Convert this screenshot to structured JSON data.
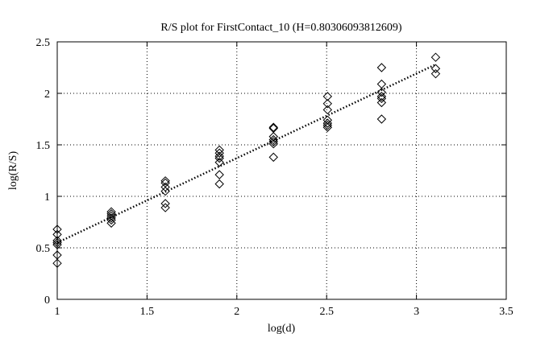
{
  "chart_data": {
    "type": "scatter",
    "title": "R/S plot for FirstContact_10 (H=0.80306093812609)",
    "xlabel": "log(d)",
    "ylabel": "log(R/S)",
    "xlim": [
      1,
      3.5
    ],
    "ylim": [
      0,
      2.5
    ],
    "x_ticks": [
      1,
      1.5,
      2,
      2.5,
      3,
      3.5
    ],
    "y_ticks": [
      0,
      0.5,
      1,
      1.5,
      2,
      2.5
    ],
    "x_tick_labels": [
      "1",
      "1.5",
      "2",
      "2.5",
      "3",
      "3.5"
    ],
    "y_tick_labels": [
      "0",
      "0.5",
      "1",
      "1.5",
      "2",
      "2.5"
    ],
    "grid": true,
    "marker": "diamond",
    "marker_color": "#000000",
    "fit_line_color": "#000000",
    "series": [
      {
        "type": "scatter",
        "points": [
          [
            1.0,
            0.68
          ],
          [
            1.0,
            0.63
          ],
          [
            1.0,
            0.57
          ],
          [
            1.0,
            0.55
          ],
          [
            1.0,
            0.53
          ],
          [
            1.0,
            0.43
          ],
          [
            1.0,
            0.35
          ],
          [
            1.301,
            0.85
          ],
          [
            1.301,
            0.83
          ],
          [
            1.301,
            0.81
          ],
          [
            1.301,
            0.79
          ],
          [
            1.301,
            0.77
          ],
          [
            1.301,
            0.74
          ],
          [
            1.602,
            1.15
          ],
          [
            1.602,
            1.13
          ],
          [
            1.602,
            1.09
          ],
          [
            1.602,
            1.05
          ],
          [
            1.602,
            0.93
          ],
          [
            1.602,
            0.89
          ],
          [
            1.903,
            1.45
          ],
          [
            1.903,
            1.42
          ],
          [
            1.903,
            1.39
          ],
          [
            1.903,
            1.37
          ],
          [
            1.903,
            1.33
          ],
          [
            1.903,
            1.21
          ],
          [
            1.903,
            1.12
          ],
          [
            2.204,
            1.67
          ],
          [
            2.204,
            1.66
          ],
          [
            2.204,
            1.58
          ],
          [
            2.204,
            1.55
          ],
          [
            2.204,
            1.53
          ],
          [
            2.204,
            1.51
          ],
          [
            2.204,
            1.38
          ],
          [
            2.505,
            1.97
          ],
          [
            2.505,
            1.9
          ],
          [
            2.505,
            1.84
          ],
          [
            2.505,
            1.74
          ],
          [
            2.505,
            1.71
          ],
          [
            2.505,
            1.69
          ],
          [
            2.505,
            1.67
          ],
          [
            2.806,
            2.25
          ],
          [
            2.806,
            2.09
          ],
          [
            2.806,
            2.01
          ],
          [
            2.806,
            1.97
          ],
          [
            2.806,
            1.95
          ],
          [
            2.806,
            1.91
          ],
          [
            2.806,
            1.75
          ],
          [
            3.107,
            2.35
          ],
          [
            3.107,
            2.24
          ],
          [
            3.107,
            2.19
          ]
        ]
      },
      {
        "type": "line",
        "style": "dotted",
        "points": [
          [
            1.0,
            0.55
          ],
          [
            3.107,
            2.28
          ]
        ]
      }
    ]
  }
}
